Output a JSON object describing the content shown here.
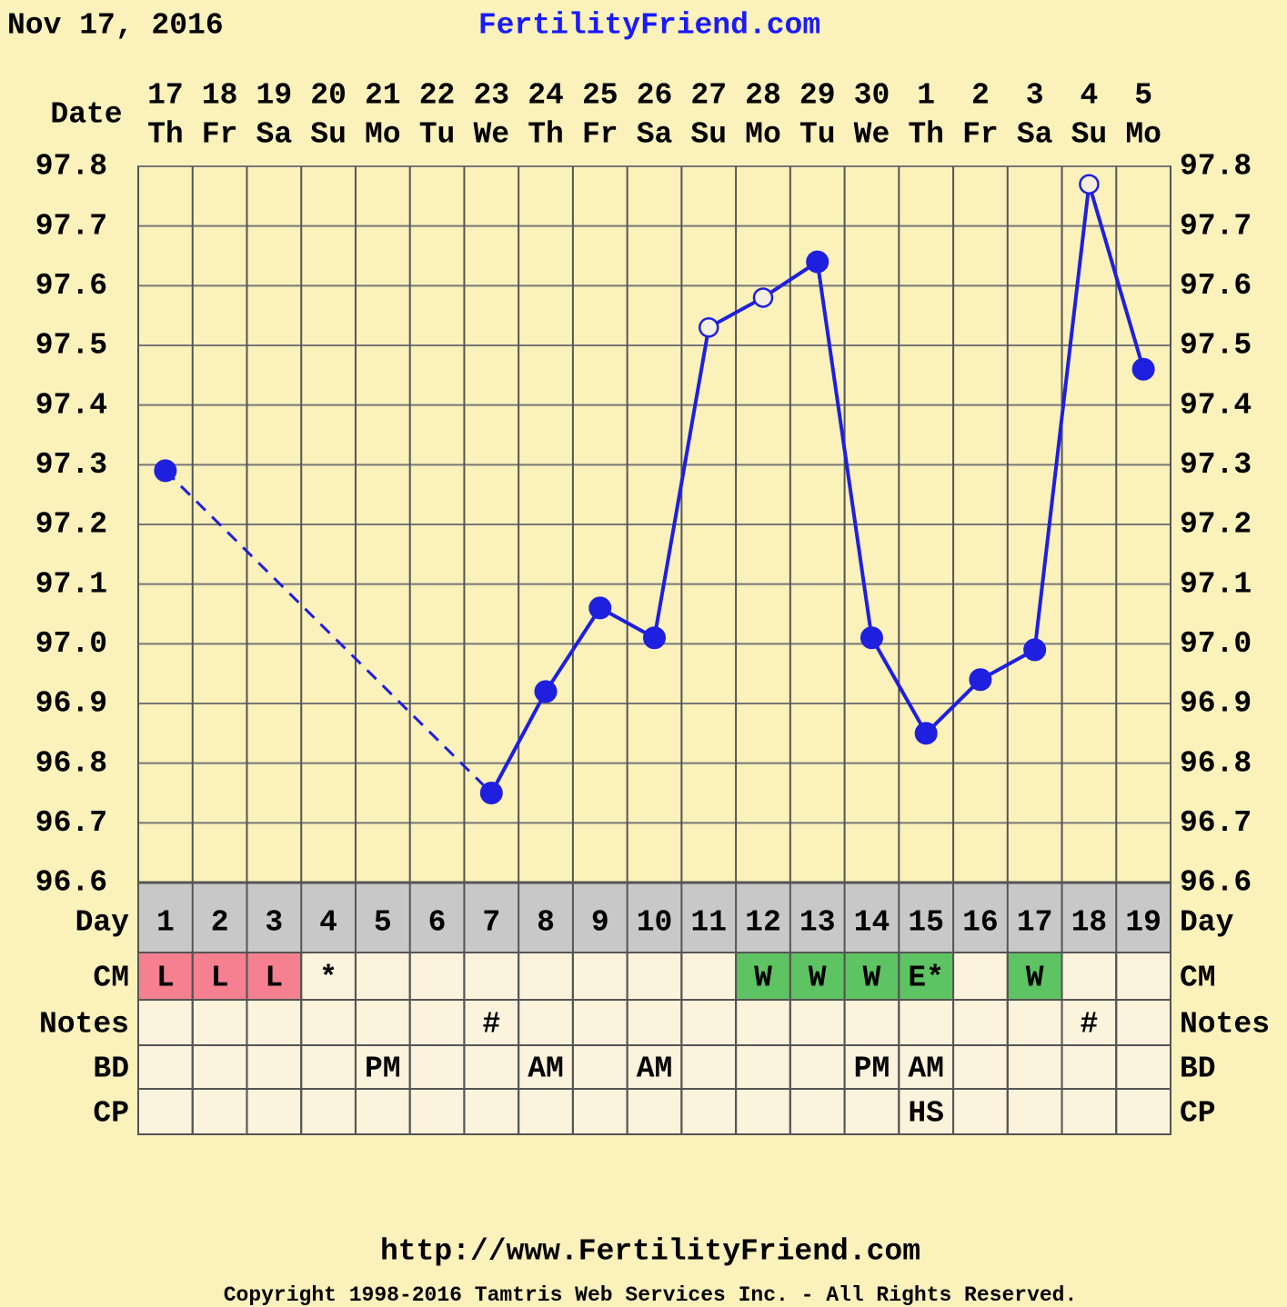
{
  "chart_data": {
    "type": "line",
    "title": "Nov 17, 2016",
    "site": "FertilityFriend.com",
    "date_label": "Date",
    "categories": [
      "17",
      "18",
      "19",
      "20",
      "21",
      "22",
      "23",
      "24",
      "25",
      "26",
      "27",
      "28",
      "29",
      "30",
      "1",
      "2",
      "3",
      "4",
      "5"
    ],
    "weekdays": [
      "Th",
      "Fr",
      "Sa",
      "Su",
      "Mo",
      "Tu",
      "We",
      "Th",
      "Fr",
      "Sa",
      "Su",
      "Mo",
      "Tu",
      "We",
      "Th",
      "Fr",
      "Sa",
      "Su",
      "Mo"
    ],
    "day_label": "Day",
    "days": [
      1,
      2,
      3,
      4,
      5,
      6,
      7,
      8,
      9,
      10,
      11,
      12,
      13,
      14,
      15,
      16,
      17,
      18,
      19
    ],
    "series": [
      {
        "color": "#1f1fe0",
        "values": [
          97.29,
          null,
          null,
          null,
          null,
          null,
          96.75,
          96.92,
          97.06,
          97.01,
          97.53,
          97.58,
          97.64,
          97.01,
          96.85,
          96.94,
          96.99,
          97.77,
          97.46
        ],
        "hollow": [
          false,
          false,
          false,
          false,
          false,
          false,
          false,
          false,
          false,
          false,
          true,
          true,
          false,
          false,
          false,
          false,
          false,
          true,
          false
        ]
      }
    ],
    "ylim": [
      96.6,
      97.8
    ],
    "yticks": [
      97.8,
      97.7,
      97.6,
      97.5,
      97.4,
      97.3,
      97.2,
      97.1,
      {
        "value": 97.0,
        "label": "97.0"
      },
      96.9,
      96.8,
      96.7,
      96.6
    ],
    "grid": true,
    "rows": [
      {
        "label": "CM",
        "values": [
          "L",
          "L",
          "L",
          "*",
          null,
          null,
          null,
          null,
          null,
          null,
          null,
          "W",
          "W",
          "W",
          "E*",
          null,
          "W",
          null,
          null
        ],
        "colors": {
          "L": "#f5808f",
          "W": "#5ec463",
          "E*": "#5ec463"
        }
      },
      {
        "label": "Notes",
        "values": [
          null,
          null,
          null,
          null,
          null,
          null,
          "#",
          null,
          null,
          null,
          null,
          null,
          null,
          null,
          null,
          null,
          null,
          "#",
          null
        ]
      },
      {
        "label": "BD",
        "values": [
          null,
          null,
          null,
          null,
          "PM",
          null,
          null,
          "AM",
          null,
          "AM",
          null,
          null,
          null,
          "PM",
          "AM",
          null,
          null,
          null,
          null
        ]
      },
      {
        "label": "CP",
        "values": [
          null,
          null,
          null,
          null,
          null,
          null,
          null,
          null,
          null,
          null,
          null,
          null,
          null,
          null,
          "HS",
          null,
          null,
          null,
          null
        ]
      }
    ],
    "footer_url": "http://www.FertilityFriend.com",
    "copyright": "Copyright 1998-2016 Tamtris Web Services Inc. - All Rights Reserved."
  }
}
